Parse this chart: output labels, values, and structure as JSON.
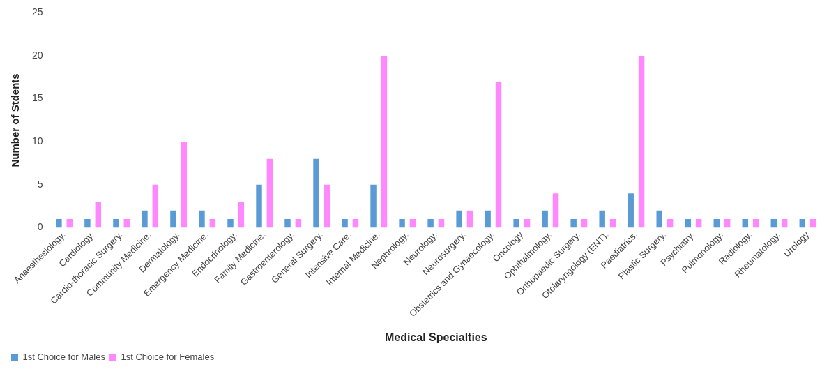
{
  "chart_data": {
    "type": "bar",
    "xlabel": "Medical Specialties",
    "ylabel": "Number of Stdents",
    "categories": [
      "Anaesthesiology.",
      "Cardiology.",
      "Cardio-thoracic Surgery.",
      "Community Medicine.",
      "Dermatology.",
      "Emergency Medicine.",
      "Endocrinology.",
      "Family Medicine.",
      "Gastroenterology.",
      "General Surgery.",
      "Intensive Care.",
      "Internal Medicine.",
      "Nephrology.",
      "Neurology.",
      "Neurosurgery.",
      "Obstetrics and Gynaecology.",
      "Oncology",
      "Ophthalmology.",
      "Orthopaedic Surgery.",
      "Otolaryngology (ENT).",
      "Paediatrics.",
      "Plastic Surgery.",
      "Psychiatry.",
      "Pulmonology.",
      "Radiology.",
      "Rheumatology.",
      "Urology"
    ],
    "series": [
      {
        "name": "1st Choice for Males",
        "color": "#5b9bd5",
        "values": [
          1,
          1,
          1,
          2,
          2,
          2,
          1,
          5,
          1,
          8,
          1,
          5,
          1,
          1,
          2,
          2,
          1,
          2,
          1,
          2,
          4,
          2,
          1,
          1,
          1,
          1,
          1
        ]
      },
      {
        "name": "1st Choice for Females",
        "color": "#ff88ff",
        "values": [
          1,
          3,
          1,
          5,
          10,
          1,
          3,
          8,
          1,
          5,
          1,
          20,
          1,
          1,
          2,
          17,
          1,
          4,
          1,
          1,
          20,
          1,
          1,
          1,
          1,
          1,
          1
        ]
      }
    ],
    "ylim": [
      0,
      25
    ],
    "yticks": [
      0,
      5,
      10,
      15,
      20,
      25
    ],
    "grid": false,
    "legend": "bottom left"
  }
}
